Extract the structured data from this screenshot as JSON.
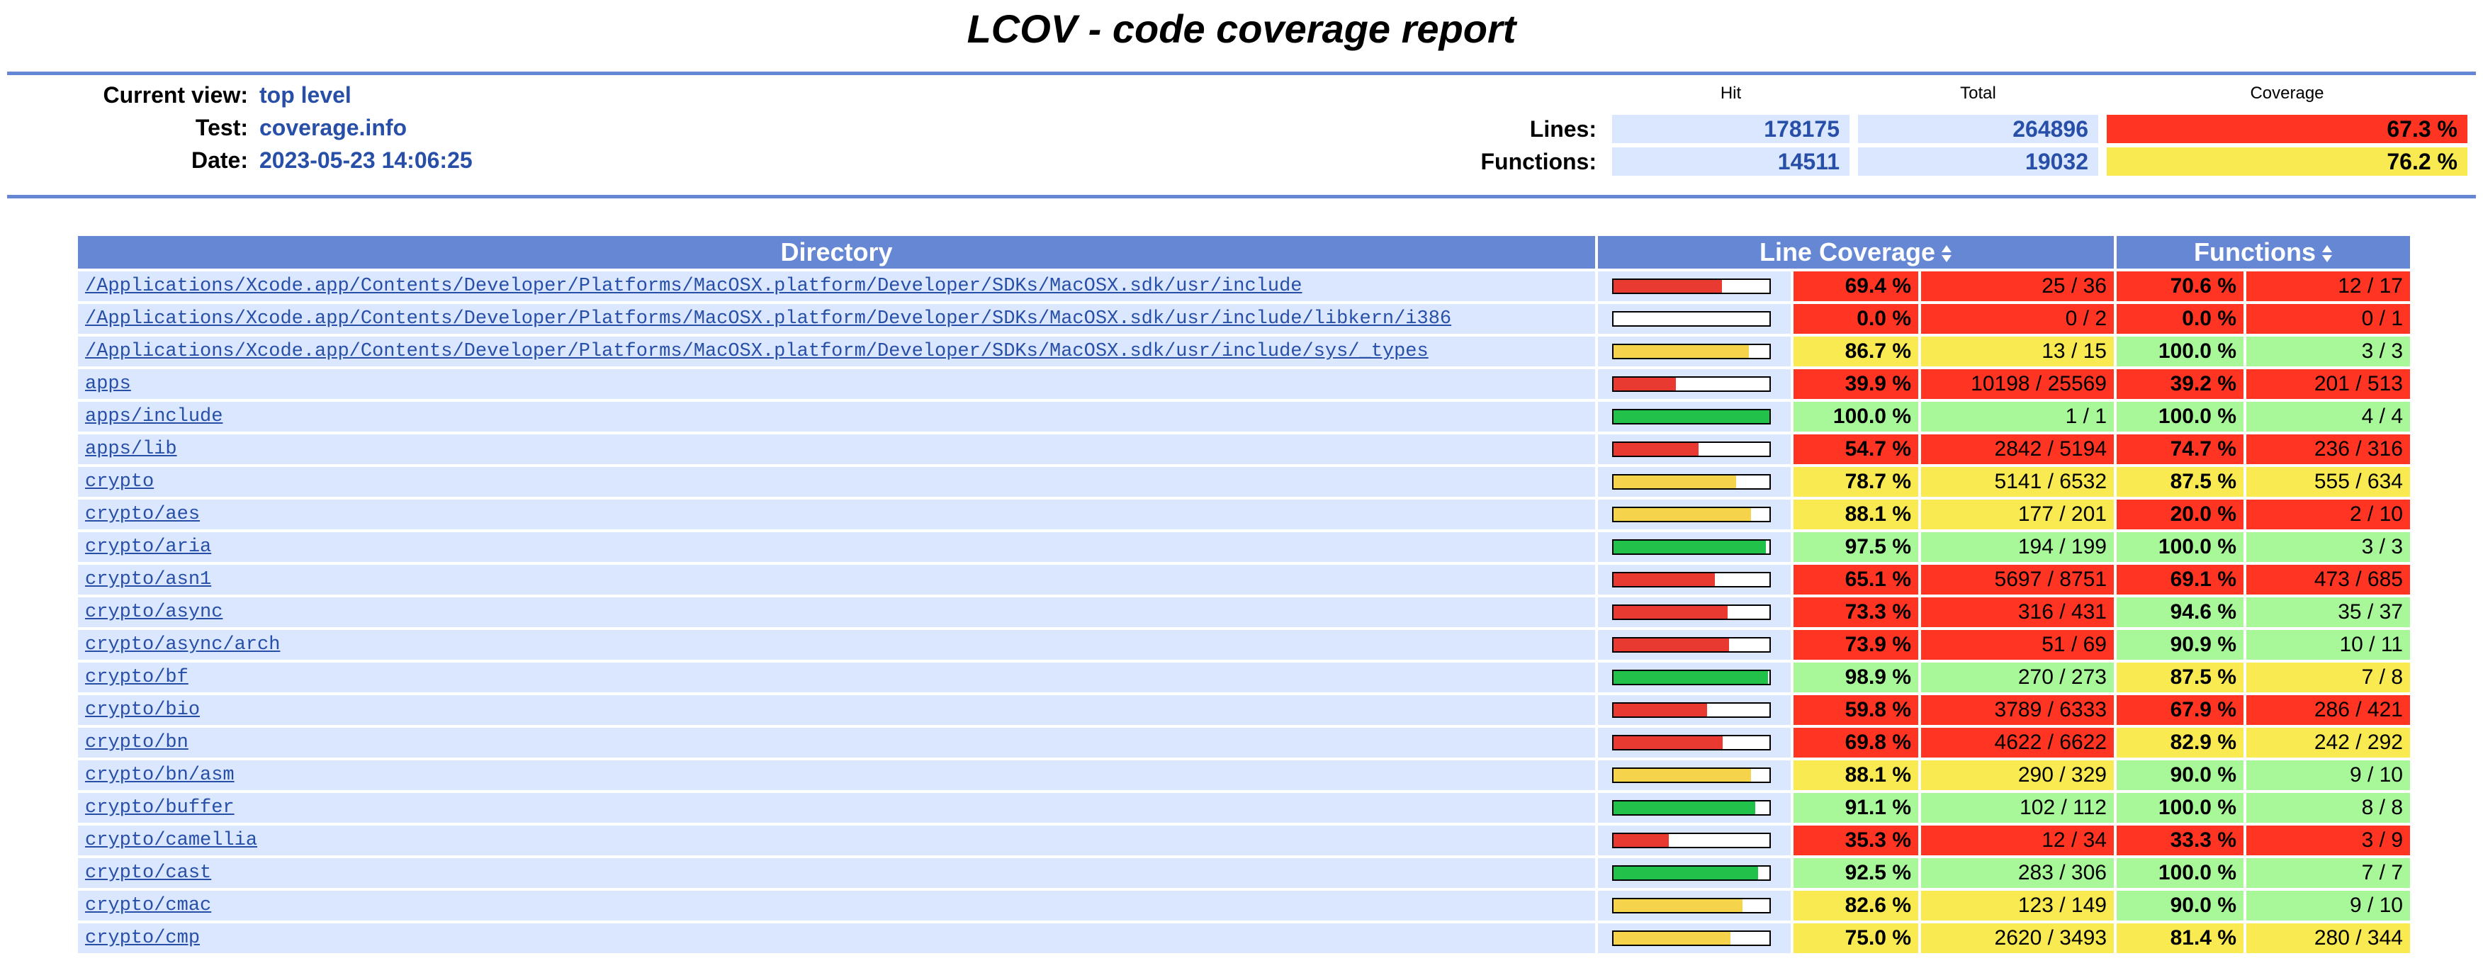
{
  "header": {
    "title": "LCOV - code coverage report",
    "info": [
      {
        "label": "Current view:",
        "value": "top level"
      },
      {
        "label": "Test:",
        "value": "coverage.info"
      },
      {
        "label": "Date:",
        "value": "2023-05-23 14:06:25"
      }
    ],
    "summary": {
      "columns": [
        "Hit",
        "Total",
        "Coverage"
      ],
      "rows": [
        {
          "label": "Lines:",
          "hit": 178175,
          "total": 264896,
          "coverage": {
            "value": 67.3,
            "label": "67.3 %"
          }
        },
        {
          "label": "Functions:",
          "hit": 14511,
          "total": 19032,
          "coverage": {
            "value": 76.2,
            "label": "76.2 %"
          }
        }
      ]
    }
  },
  "table": {
    "columns": [
      "Directory",
      "Line Coverage",
      "Functions"
    ],
    "rows": [
      {
        "name": "/Applications/Xcode.app/Contents/Developer/Platforms/MacOSX.platform/Developer/SDKs/MacOSX.sdk/usr/include",
        "line": {
          "value": 69.4,
          "label": "69.4 %"
        },
        "line_count": "25 / 36",
        "func": {
          "value": 70.6,
          "label": "70.6 %"
        },
        "func_count": "12 / 17"
      },
      {
        "name": "/Applications/Xcode.app/Contents/Developer/Platforms/MacOSX.platform/Developer/SDKs/MacOSX.sdk/usr/include/libkern/i386",
        "line": {
          "value": 0.0,
          "label": "0.0 %"
        },
        "line_count": "0 / 2",
        "func": {
          "value": 0.0,
          "label": "0.0 %"
        },
        "func_count": "0 / 1"
      },
      {
        "name": "/Applications/Xcode.app/Contents/Developer/Platforms/MacOSX.platform/Developer/SDKs/MacOSX.sdk/usr/include/sys/_types",
        "line": {
          "value": 86.7,
          "label": "86.7 %"
        },
        "line_count": "13 / 15",
        "func": {
          "value": 100.0,
          "label": "100.0 %"
        },
        "func_count": "3 / 3"
      },
      {
        "name": "apps",
        "line": {
          "value": 39.9,
          "label": "39.9 %"
        },
        "line_count": "10198 / 25569",
        "func": {
          "value": 39.2,
          "label": "39.2 %"
        },
        "func_count": "201 / 513"
      },
      {
        "name": "apps/include",
        "line": {
          "value": 100.0,
          "label": "100.0 %"
        },
        "line_count": "1 / 1",
        "func": {
          "value": 100.0,
          "label": "100.0 %"
        },
        "func_count": "4 / 4"
      },
      {
        "name": "apps/lib",
        "line": {
          "value": 54.7,
          "label": "54.7 %"
        },
        "line_count": "2842 / 5194",
        "func": {
          "value": 74.7,
          "label": "74.7 %"
        },
        "func_count": "236 / 316"
      },
      {
        "name": "crypto",
        "line": {
          "value": 78.7,
          "label": "78.7 %"
        },
        "line_count": "5141 / 6532",
        "func": {
          "value": 87.5,
          "label": "87.5 %"
        },
        "func_count": "555 / 634"
      },
      {
        "name": "crypto/aes",
        "line": {
          "value": 88.1,
          "label": "88.1 %"
        },
        "line_count": "177 / 201",
        "func": {
          "value": 20.0,
          "label": "20.0 %"
        },
        "func_count": "2 / 10"
      },
      {
        "name": "crypto/aria",
        "line": {
          "value": 97.5,
          "label": "97.5 %"
        },
        "line_count": "194 / 199",
        "func": {
          "value": 100.0,
          "label": "100.0 %"
        },
        "func_count": "3 / 3"
      },
      {
        "name": "crypto/asn1",
        "line": {
          "value": 65.1,
          "label": "65.1 %"
        },
        "line_count": "5697 / 8751",
        "func": {
          "value": 69.1,
          "label": "69.1 %"
        },
        "func_count": "473 / 685"
      },
      {
        "name": "crypto/async",
        "line": {
          "value": 73.3,
          "label": "73.3 %"
        },
        "line_count": "316 / 431",
        "func": {
          "value": 94.6,
          "label": "94.6 %"
        },
        "func_count": "35 / 37"
      },
      {
        "name": "crypto/async/arch",
        "line": {
          "value": 73.9,
          "label": "73.9 %"
        },
        "line_count": "51 / 69",
        "func": {
          "value": 90.9,
          "label": "90.9 %"
        },
        "func_count": "10 / 11"
      },
      {
        "name": "crypto/bf",
        "line": {
          "value": 98.9,
          "label": "98.9 %"
        },
        "line_count": "270 / 273",
        "func": {
          "value": 87.5,
          "label": "87.5 %"
        },
        "func_count": "7 / 8"
      },
      {
        "name": "crypto/bio",
        "line": {
          "value": 59.8,
          "label": "59.8 %"
        },
        "line_count": "3789 / 6333",
        "func": {
          "value": 67.9,
          "label": "67.9 %"
        },
        "func_count": "286 / 421"
      },
      {
        "name": "crypto/bn",
        "line": {
          "value": 69.8,
          "label": "69.8 %"
        },
        "line_count": "4622 / 6622",
        "func": {
          "value": 82.9,
          "label": "82.9 %"
        },
        "func_count": "242 / 292"
      },
      {
        "name": "crypto/bn/asm",
        "line": {
          "value": 88.1,
          "label": "88.1 %"
        },
        "line_count": "290 / 329",
        "func": {
          "value": 90.0,
          "label": "90.0 %"
        },
        "func_count": "9 / 10"
      },
      {
        "name": "crypto/buffer",
        "line": {
          "value": 91.1,
          "label": "91.1 %"
        },
        "line_count": "102 / 112",
        "func": {
          "value": 100.0,
          "label": "100.0 %"
        },
        "func_count": "8 / 8"
      },
      {
        "name": "crypto/camellia",
        "line": {
          "value": 35.3,
          "label": "35.3 %"
        },
        "line_count": "12 / 34",
        "func": {
          "value": 33.3,
          "label": "33.3 %"
        },
        "func_count": "3 / 9"
      },
      {
        "name": "crypto/cast",
        "line": {
          "value": 92.5,
          "label": "92.5 %"
        },
        "line_count": "283 / 306",
        "func": {
          "value": 100.0,
          "label": "100.0 %"
        },
        "func_count": "7 / 7"
      },
      {
        "name": "crypto/cmac",
        "line": {
          "value": 82.6,
          "label": "82.6 %"
        },
        "line_count": "123 / 149",
        "func": {
          "value": 90.0,
          "label": "90.0 %"
        },
        "func_count": "9 / 10"
      },
      {
        "name": "crypto/cmp",
        "line": {
          "value": 75.0,
          "label": "75.0 %"
        },
        "line_count": "2620 / 3493",
        "func": {
          "value": 81.4,
          "label": "81.4 %"
        },
        "func_count": "280 / 344"
      }
    ]
  }
}
